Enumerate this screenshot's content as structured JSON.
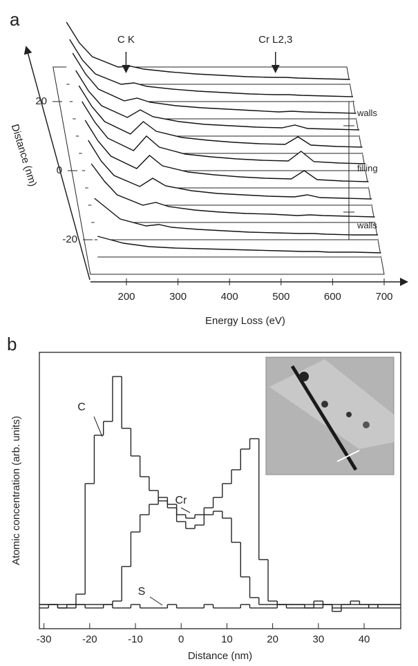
{
  "chart_data": [
    {
      "type": "waterfall",
      "label": "a",
      "x_label": "Energy Loss (eV)",
      "y_label": "Distance (nm)",
      "xlim": [
        130,
        700
      ],
      "xticks": [
        200,
        300,
        400,
        500,
        600,
        700
      ],
      "ylim": [
        -30,
        30
      ],
      "yticks": [
        -20,
        0,
        20
      ],
      "zlim": [
        0,
        10
      ],
      "x": [
        150,
        175,
        200,
        250,
        275,
        300,
        350,
        400,
        450,
        500,
        550,
        575,
        600,
        650,
        700
      ],
      "spectra": [
        {
          "distance": 25,
          "values": [
            9,
            6,
            4,
            2.5,
            2.6,
            2.2,
            1.8,
            1.5,
            1.3,
            1.1,
            1.0,
            1.0,
            0.9,
            0.8,
            0.7
          ]
        },
        {
          "distance": 20,
          "values": [
            9,
            6,
            4,
            2.5,
            2.7,
            2.2,
            1.8,
            1.5,
            1.3,
            1.1,
            1.0,
            1.0,
            0.9,
            0.8,
            0.7
          ]
        },
        {
          "distance": 15,
          "values": [
            9.5,
            6.5,
            4.3,
            2.6,
            3.0,
            2.4,
            1.9,
            1.6,
            1.4,
            1.2,
            1.0,
            1.1,
            1.0,
            0.9,
            0.8
          ]
        },
        {
          "distance": 10,
          "values": [
            9.5,
            6.5,
            4.4,
            2.7,
            3.8,
            2.8,
            2.1,
            1.7,
            1.5,
            1.3,
            1.2,
            1.6,
            1.1,
            1.0,
            0.9
          ]
        },
        {
          "distance": 5,
          "values": [
            9.8,
            6.8,
            4.6,
            2.8,
            4.6,
            3.2,
            2.3,
            1.9,
            1.6,
            1.4,
            1.3,
            2.4,
            1.2,
            1.0,
            0.9
          ]
        },
        {
          "distance": 0,
          "values": [
            10,
            7,
            4.7,
            2.9,
            5.0,
            3.4,
            2.4,
            2.0,
            1.7,
            1.5,
            1.4,
            2.8,
            1.3,
            1.1,
            1.0
          ]
        },
        {
          "distance": -5,
          "values": [
            9.8,
            6.8,
            4.6,
            2.8,
            4.7,
            3.2,
            2.3,
            1.9,
            1.6,
            1.4,
            1.3,
            2.5,
            1.2,
            1.0,
            0.9
          ]
        },
        {
          "distance": -10,
          "values": [
            9.4,
            6.4,
            4.3,
            2.7,
            3.9,
            2.8,
            2.1,
            1.7,
            1.5,
            1.3,
            1.2,
            1.5,
            1.1,
            1.0,
            0.9
          ]
        },
        {
          "distance": -15,
          "values": [
            8.5,
            6,
            4,
            2.5,
            2.9,
            2.3,
            1.8,
            1.5,
            1.3,
            1.2,
            1.0,
            1.1,
            1.0,
            0.9,
            0.8
          ]
        },
        {
          "distance": -20,
          "values": [
            6,
            4.5,
            3,
            2,
            2.2,
            1.8,
            1.5,
            1.3,
            1.1,
            1.0,
            0.9,
            0.9,
            0.8,
            0.7,
            0.7
          ]
        },
        {
          "distance": -25,
          "values": [
            3,
            2.5,
            2,
            1.5,
            1.4,
            1.3,
            1.2,
            1.1,
            1.0,
            0.9,
            0.8,
            0.8,
            0.7,
            0.7,
            0.6
          ]
        }
      ],
      "annotations": [
        {
          "text": "C K",
          "x": 285
        },
        {
          "text": "Cr L2,3",
          "x": 575
        }
      ],
      "regions": [
        {
          "label": "walls",
          "range": [
            13,
            20
          ]
        },
        {
          "label": "filling",
          "range": [
            -12,
            13
          ]
        },
        {
          "label": "walls",
          "range": [
            -20,
            -12
          ]
        }
      ]
    },
    {
      "type": "step",
      "label": "b",
      "x_label": "Distance (nm)",
      "y_label": "Atomic concentration (arb. units)",
      "xlim": [
        -31,
        48
      ],
      "xticks": [
        -30,
        -20,
        -10,
        0,
        10,
        20,
        30,
        40
      ],
      "ylim": [
        0,
        8
      ],
      "x": [
        -30,
        -28,
        -26,
        -24,
        -22,
        -20,
        -18,
        -16,
        -14,
        -12,
        -10,
        -8,
        -6,
        -4,
        -2,
        0,
        2,
        4,
        6,
        8,
        10,
        12,
        14,
        16,
        18,
        20,
        22,
        24,
        26,
        28,
        30,
        32,
        34,
        36,
        38,
        40,
        42,
        44,
        46,
        48
      ],
      "series": [
        {
          "name": "C",
          "color": "#222222",
          "values": [
            0.7,
            0.7,
            0.6,
            0.7,
            1.0,
            4.2,
            5.6,
            6.0,
            7.3,
            5.8,
            5.0,
            4.4,
            4.0,
            3.7,
            3.5,
            3.3,
            3.2,
            3.3,
            3.5,
            3.8,
            4.2,
            4.6,
            5.2,
            5.5,
            2.0,
            0.8,
            0.7,
            0.7,
            0.7,
            0.6,
            0.8,
            0.7,
            0.5,
            0.7,
            0.8,
            0.7,
            0.6,
            0.7,
            0.7,
            0.7
          ]
        },
        {
          "name": "Cr",
          "color": "#222222",
          "values": [
            0.7,
            0.7,
            0.7,
            0.7,
            0.7,
            0.7,
            0.7,
            0.7,
            0.8,
            1.8,
            2.8,
            3.3,
            3.6,
            3.8,
            3.6,
            3.1,
            2.9,
            3.0,
            3.3,
            3.4,
            3.2,
            2.5,
            1.5,
            0.9,
            0.7,
            0.7,
            0.7,
            0.7,
            0.7,
            0.7,
            0.7,
            0.7,
            0.7,
            0.7,
            0.7,
            0.7,
            0.7,
            0.7,
            0.7,
            0.7
          ]
        },
        {
          "name": "S",
          "color": "#222222",
          "values": [
            0.6,
            0.7,
            0.6,
            0.6,
            0.7,
            0.6,
            0.6,
            0.7,
            0.6,
            0.6,
            0.7,
            0.6,
            0.6,
            0.6,
            0.7,
            0.6,
            0.6,
            0.6,
            0.7,
            0.6,
            0.6,
            0.6,
            0.7,
            0.6,
            0.6,
            0.6,
            0.7,
            0.6,
            0.6,
            0.6,
            0.6,
            0.7,
            0.6,
            0.6,
            0.6,
            0.6,
            0.7,
            0.6,
            0.6,
            0.6
          ]
        }
      ]
    }
  ]
}
